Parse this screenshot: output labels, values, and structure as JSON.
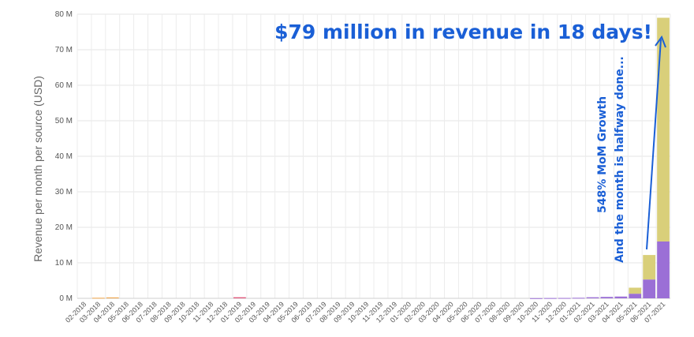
{
  "chart_data": {
    "type": "bar",
    "stacked": true,
    "ylabel": "Revenue per month per source (USD)",
    "xlabel": "",
    "ylim": [
      0,
      80000000
    ],
    "yticks": [
      {
        "value": 0,
        "label": "0 M"
      },
      {
        "value": 10000000,
        "label": "10 M"
      },
      {
        "value": 20000000,
        "label": "20 M"
      },
      {
        "value": 30000000,
        "label": "30 M"
      },
      {
        "value": 40000000,
        "label": "40 M"
      },
      {
        "value": 50000000,
        "label": "50 M"
      },
      {
        "value": 60000000,
        "label": "60 M"
      },
      {
        "value": 70000000,
        "label": "70 M"
      },
      {
        "value": 80000000,
        "label": "80 M"
      }
    ],
    "grid": true,
    "categories": [
      "02-2018",
      "03-2018",
      "04-2018",
      "05-2018",
      "06-2018",
      "07-2018",
      "08-2018",
      "09-2018",
      "10-2018",
      "11-2018",
      "12-2018",
      "01-2019",
      "02-2019",
      "03-2019",
      "04-2019",
      "05-2019",
      "06-2019",
      "07-2019",
      "08-2019",
      "09-2019",
      "10-2019",
      "11-2019",
      "12-2019",
      "01-2020",
      "02-2020",
      "03-2020",
      "04-2020",
      "05-2020",
      "06-2020",
      "07-2020",
      "08-2020",
      "09-2020",
      "10-2020",
      "11-2020",
      "12-2020",
      "01-2021",
      "02-2021",
      "03-2021",
      "04-2021",
      "05-2021",
      "06-2021",
      "07-2021"
    ],
    "series": [
      {
        "color": "#9b6fd6",
        "values": [
          0,
          0,
          0,
          0,
          0,
          0,
          0,
          0,
          0,
          0,
          0,
          0,
          0,
          0,
          0,
          0,
          0,
          0,
          0,
          0,
          0,
          0,
          0,
          0,
          0,
          0,
          0,
          0,
          0,
          0,
          0,
          0,
          50000,
          80000,
          100000,
          150000,
          300000,
          400000,
          500000,
          1300000,
          5300000,
          16000000
        ]
      },
      {
        "color": "#d9cf7a",
        "values": [
          0,
          0,
          0,
          0,
          0,
          0,
          0,
          0,
          0,
          0,
          0,
          0,
          0,
          0,
          0,
          0,
          0,
          0,
          0,
          0,
          0,
          0,
          0,
          0,
          0,
          0,
          0,
          0,
          0,
          0,
          0,
          0,
          0,
          0,
          0,
          0,
          0,
          0,
          0,
          1700000,
          6900000,
          63000000
        ]
      },
      {
        "color": "#f0a54a",
        "values": [
          0,
          150000,
          250000,
          0,
          0,
          0,
          0,
          0,
          0,
          0,
          0,
          0,
          0,
          0,
          0,
          0,
          0,
          0,
          0,
          0,
          0,
          0,
          0,
          0,
          0,
          0,
          0,
          0,
          0,
          0,
          0,
          0,
          0,
          0,
          0,
          0,
          0,
          0,
          0,
          0,
          0,
          0
        ]
      },
      {
        "color": "#e0567a",
        "values": [
          0,
          0,
          0,
          0,
          0,
          0,
          0,
          0,
          0,
          0,
          0,
          300000,
          0,
          0,
          0,
          0,
          0,
          0,
          0,
          0,
          0,
          0,
          0,
          0,
          0,
          0,
          0,
          0,
          0,
          0,
          0,
          0,
          0,
          0,
          0,
          0,
          0,
          0,
          0,
          0,
          0,
          0
        ]
      }
    ],
    "annotations": [
      {
        "text": "$79 million in revenue in 18 days!"
      },
      {
        "text": "548% MoM Growth"
      },
      {
        "text": "And the month is halfway done..."
      }
    ]
  }
}
